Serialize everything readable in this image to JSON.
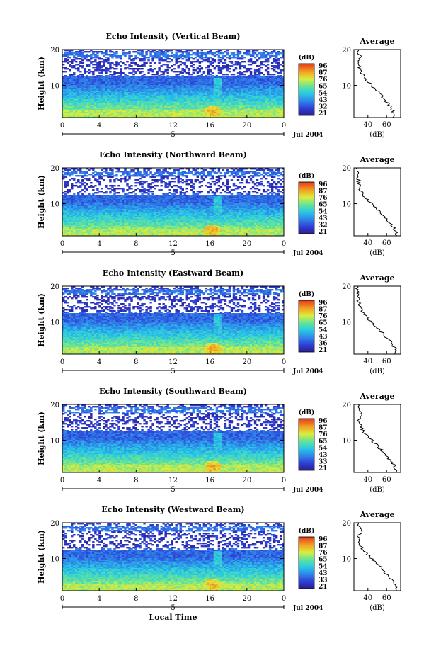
{
  "chart_data": [
    {
      "type": "heatmap",
      "title": "Echo Intensity (Vertical Beam)",
      "ylabel": "Height (km)",
      "ylim": [
        1,
        20
      ],
      "yticks": [
        "10",
        "20"
      ],
      "xlim": [
        0,
        24
      ],
      "xticks": [
        "0",
        "4",
        "8",
        "12",
        "16",
        "20",
        "0"
      ],
      "date_marker": "5",
      "date_label": "Jul 2004",
      "colorbar_unit": "(dB)",
      "colorbar_ticks": [
        "96",
        "87",
        "76",
        "65",
        "54",
        "43",
        "32",
        "21"
      ],
      "average": {
        "title": "Average",
        "xlabel": "(dB)",
        "xticks": [
          "40",
          "60"
        ],
        "yticks": [
          "10",
          "20"
        ],
        "height_km": [
          2,
          4,
          6,
          8,
          10,
          12,
          14,
          16,
          18,
          20
        ],
        "db": [
          68,
          65,
          57,
          52,
          44,
          36,
          32,
          30,
          32,
          28
        ]
      }
    },
    {
      "type": "heatmap",
      "title": "Echo Intensity (Northward Beam)",
      "ylabel": "Height (km)",
      "ylim": [
        1,
        20
      ],
      "yticks": [
        "10",
        "20"
      ],
      "xlim": [
        0,
        24
      ],
      "xticks": [
        "0",
        "4",
        "8",
        "12",
        "16",
        "20",
        "0"
      ],
      "date_marker": "5",
      "date_label": "Jul 2004",
      "colorbar_unit": "(dB)",
      "colorbar_ticks": [
        "96",
        "87",
        "76",
        "65",
        "54",
        "43",
        "32",
        "21"
      ],
      "average": {
        "title": "Average",
        "xlabel": "(dB)",
        "xticks": [
          "40",
          "60"
        ],
        "yticks": [
          "10",
          "20"
        ],
        "height_km": [
          2,
          4,
          6,
          8,
          10,
          12,
          14,
          16,
          18,
          20
        ],
        "db": [
          70,
          66,
          58,
          52,
          44,
          36,
          32,
          30,
          29,
          28
        ]
      }
    },
    {
      "type": "heatmap",
      "title": "Echo Intensity (Eastward Beam)",
      "ylabel": "Height (km)",
      "ylim": [
        1,
        20
      ],
      "yticks": [
        "10",
        "20"
      ],
      "xlim": [
        0,
        24
      ],
      "xticks": [
        "0",
        "4",
        "8",
        "12",
        "16",
        "20",
        "0"
      ],
      "date_marker": "5",
      "date_label": "Jul 2004",
      "colorbar_unit": "(dB)",
      "colorbar_ticks": [
        "96",
        "87",
        "76",
        "65",
        "54",
        "43",
        "36",
        "21"
      ],
      "average": {
        "title": "Average",
        "xlabel": "(dB)",
        "xticks": [
          "40",
          "60"
        ],
        "yticks": [
          "10",
          "20"
        ],
        "height_km": [
          2,
          4,
          6,
          8,
          10,
          12,
          14,
          16,
          18,
          20
        ],
        "db": [
          70,
          66,
          58,
          52,
          44,
          36,
          32,
          30,
          29,
          28
        ]
      }
    },
    {
      "type": "heatmap",
      "title": "Echo Intensity (Southward Beam)",
      "ylabel": "Height (km)",
      "ylim": [
        1,
        20
      ],
      "yticks": [
        "10",
        "20"
      ],
      "xlim": [
        0,
        24
      ],
      "xticks": [
        "0",
        "4",
        "8",
        "12",
        "16",
        "20",
        "0"
      ],
      "date_marker": "5",
      "date_label": "Jul 2004",
      "colorbar_unit": "(dB)",
      "colorbar_ticks": [
        "96",
        "87",
        "76",
        "65",
        "54",
        "43",
        "33",
        "21"
      ],
      "average": {
        "title": "Average",
        "xlabel": "(dB)",
        "xticks": [
          "40",
          "60"
        ],
        "yticks": [
          "10",
          "20"
        ],
        "height_km": [
          2,
          4,
          6,
          8,
          10,
          12,
          14,
          16,
          18,
          20
        ],
        "db": [
          70,
          66,
          58,
          52,
          44,
          36,
          32,
          30,
          33,
          28
        ]
      }
    },
    {
      "type": "heatmap",
      "title": "Echo Intensity (Westward Beam)",
      "ylabel": "Height (km)",
      "ylim": [
        1,
        20
      ],
      "yticks": [
        "10",
        "20"
      ],
      "xlim": [
        0,
        24
      ],
      "xticks": [
        "0",
        "4",
        "8",
        "12",
        "16",
        "20",
        "0"
      ],
      "date_marker": "5",
      "date_label": "Jul 2004",
      "xlabel": "Local Time",
      "colorbar_unit": "(dB)",
      "colorbar_ticks": [
        "96",
        "87",
        "76",
        "65",
        "54",
        "43",
        "33",
        "21"
      ],
      "average": {
        "title": "Average",
        "xlabel": "(dB)",
        "xticks": [
          "40",
          "60"
        ],
        "yticks": [
          "10",
          "20"
        ],
        "height_km": [
          2,
          4,
          6,
          8,
          10,
          12,
          14,
          16,
          18,
          20
        ],
        "db": [
          70,
          66,
          58,
          52,
          44,
          36,
          32,
          30,
          33,
          28
        ]
      }
    }
  ]
}
